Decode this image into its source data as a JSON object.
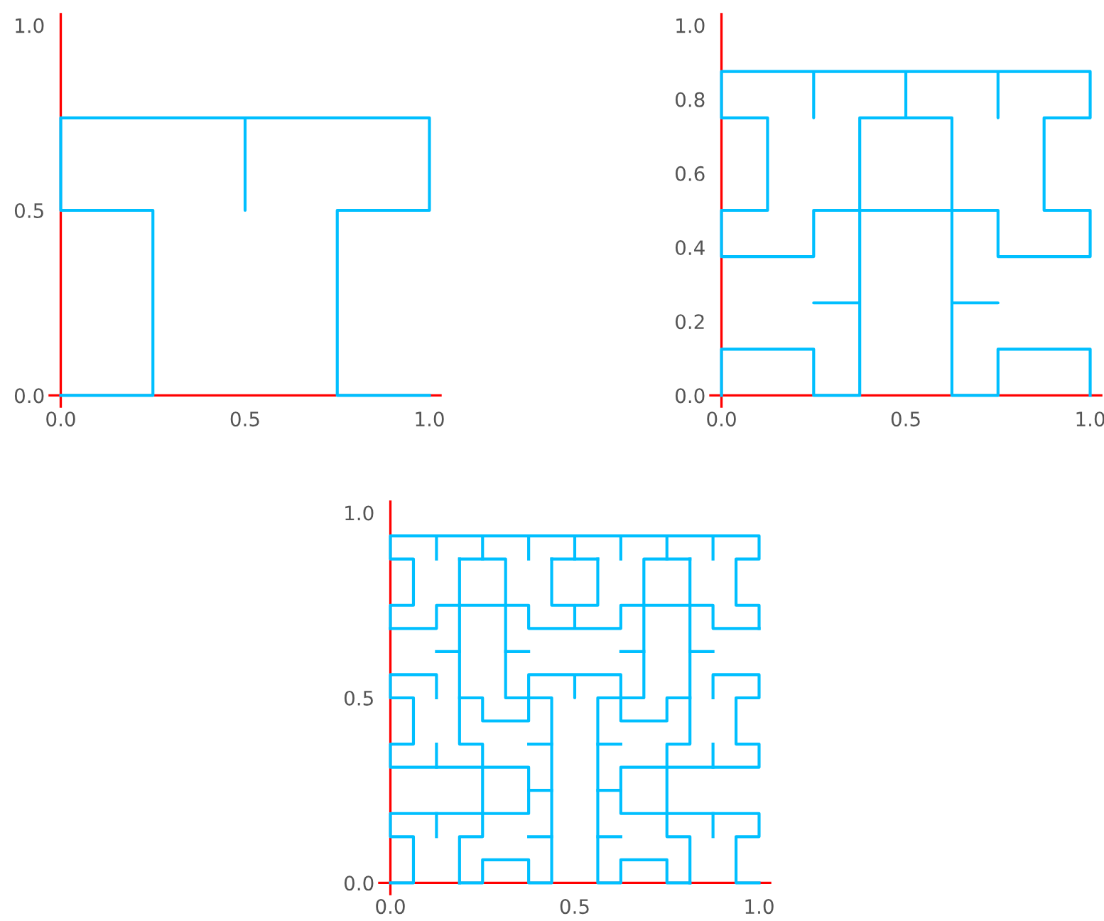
{
  "chart_data": [
    {
      "type": "line",
      "xlim": [
        -0.03,
        1.03
      ],
      "ylim": [
        -0.03,
        1.03
      ],
      "xticks": [
        {
          "value": 0,
          "label": "0.0"
        },
        {
          "value": 0.5,
          "label": "0.5"
        },
        {
          "value": 1,
          "label": "1.0"
        }
      ],
      "yticks": [
        {
          "value": 0,
          "label": "0.0"
        },
        {
          "value": 0.5,
          "label": "0.5"
        },
        {
          "value": 1,
          "label": "1.0"
        }
      ],
      "series": [
        {
          "color": "#00bfff",
          "x": [
            0,
            0.25,
            0.25,
            0,
            0,
            0.5,
            0.5,
            0.5,
            1,
            1,
            0.75,
            0.75,
            1
          ],
          "values": [
            0,
            0,
            0.5,
            0.5,
            0.75,
            0.75,
            0.5,
            0.75,
            0.75,
            0.5,
            0.5,
            0,
            0
          ]
        }
      ]
    },
    {
      "type": "line",
      "xlim": [
        -0.03,
        1.03
      ],
      "ylim": [
        -0.03,
        1.03
      ],
      "xticks": [
        {
          "value": 0,
          "label": "0.0"
        },
        {
          "value": 0.5,
          "label": "0.5"
        },
        {
          "value": 1,
          "label": "1.0"
        }
      ],
      "yticks": [
        {
          "value": 0,
          "label": "0.0"
        },
        {
          "value": 0.2,
          "label": "0.2"
        },
        {
          "value": 0.4,
          "label": "0.4"
        },
        {
          "value": 0.6,
          "label": "0.6"
        },
        {
          "value": 0.8,
          "label": "0.8"
        },
        {
          "value": 1,
          "label": "1.0"
        }
      ],
      "series": [
        {
          "color": "#00bfff",
          "x": [
            0,
            0,
            0.25,
            0.25,
            0.375,
            0.375,
            0.25,
            0.375,
            0.375,
            0.25,
            0.25,
            0,
            0,
            0.125,
            0.125,
            0,
            0,
            0.25,
            0.25,
            0.25,
            0.5,
            0.5,
            0.375,
            0.375,
            0.625,
            0.625,
            0.5,
            0.5,
            0.75,
            0.75,
            0.75,
            1,
            1,
            0.875,
            0.875,
            1,
            1,
            0.75,
            0.75,
            0.625,
            0.625,
            0.75,
            0.625,
            0.625,
            0.75,
            0.75,
            1,
            1
          ],
          "values": [
            0,
            0.125,
            0.125,
            0,
            0,
            0.25,
            0.25,
            0.25,
            0.5,
            0.5,
            0.375,
            0.375,
            0.5,
            0.5,
            0.75,
            0.75,
            0.875,
            0.875,
            0.75,
            0.875,
            0.875,
            0.75,
            0.75,
            0.5,
            0.5,
            0.75,
            0.75,
            0.875,
            0.875,
            0.75,
            0.875,
            0.875,
            0.75,
            0.75,
            0.5,
            0.5,
            0.375,
            0.375,
            0.5,
            0.5,
            0.25,
            0.25,
            0.25,
            0,
            0,
            0.125,
            0.125,
            0
          ]
        }
      ]
    },
    {
      "type": "line",
      "xlim": [
        -0.03,
        1.03
      ],
      "ylim": [
        -0.03,
        1.03
      ],
      "xticks": [
        {
          "value": 0,
          "label": "0.0"
        },
        {
          "value": 0.5,
          "label": "0.5"
        },
        {
          "value": 1,
          "label": "1.0"
        }
      ],
      "yticks": [
        {
          "value": 0,
          "label": "0.0"
        },
        {
          "value": 0.5,
          "label": "0.5"
        },
        {
          "value": 1,
          "label": "1.0"
        }
      ],
      "series": [
        {
          "color": "#00bfff",
          "x": [
            0,
            0.0625,
            0.0625,
            0,
            0,
            0.375,
            0.375,
            0,
            0,
            0.0625,
            0.0625,
            0,
            0,
            0.125,
            0.125
          ],
          "values": [
            0,
            0,
            0.125,
            0.125,
            0.1875,
            0.1875,
            0.3125,
            0.3125,
            0.375,
            0.375,
            0.5,
            0.5,
            0.5625,
            0.5625,
            0.5
          ]
        },
        {
          "color": "#00bfff",
          "x": [
            0.125,
            0.125
          ],
          "values": [
            0.1875,
            0.125
          ]
        },
        {
          "color": "#00bfff",
          "x": [
            0.125,
            0.125
          ],
          "values": [
            0.375,
            0.3125
          ]
        },
        {
          "color": "#00bfff",
          "x": [
            0.1875,
            0.25,
            0.25,
            0.375,
            0.375,
            0.4375,
            0.4375,
            0.3125,
            0.3125,
            0.1875
          ],
          "values": [
            0,
            0,
            0.0625,
            0.0625,
            0,
            0,
            0.5,
            0.5,
            0.875,
            0.875
          ]
        },
        {
          "color": "#00bfff",
          "x": [
            0.1875,
            0.1875,
            0.25,
            0.25,
            0.1875,
            0.1875
          ],
          "values": [
            0.875,
            0.375,
            0.375,
            0.125,
            0.125,
            0
          ]
        },
        {
          "color": "#00bfff",
          "x": [
            0.375,
            0.4375
          ],
          "values": [
            0.25,
            0.25
          ]
        },
        {
          "color": "#00bfff",
          "x": [
            0.375,
            0.4375
          ],
          "values": [
            0.375,
            0.375
          ]
        },
        {
          "color": "#00bfff",
          "x": [
            0.375,
            0.4375
          ],
          "values": [
            0.125,
            0.125
          ]
        },
        {
          "color": "#00bfff",
          "x": [
            0.1875,
            0.25,
            0.25,
            0.375,
            0.375,
            0.5,
            0.5,
            0.5,
            0.625,
            0.625,
            0.75,
            0.75,
            0.8125
          ],
          "values": [
            0.5,
            0.5,
            0.4375,
            0.4375,
            0.5625,
            0.5625,
            0.5,
            0.5625,
            0.5625,
            0.4375,
            0.4375,
            0.5,
            0.5
          ]
        },
        {
          "color": "#00bfff",
          "x": [
            0.125,
            0.1875
          ],
          "values": [
            0.625,
            0.625
          ]
        },
        {
          "color": "#00bfff",
          "x": [
            0.3125,
            0.375
          ],
          "values": [
            0.625,
            0.625
          ]
        },
        {
          "color": "#00bfff",
          "x": [
            0,
            0,
            0.0625,
            0.0625,
            0,
            0,
            1,
            1,
            0.9375,
            0.9375,
            1,
            1
          ],
          "values": [
            0.6875,
            0.75,
            0.75,
            0.875,
            0.875,
            0.9375,
            0.9375,
            0.875,
            0.875,
            0.75,
            0.75,
            0.6875
          ]
        },
        {
          "color": "#00bfff",
          "x": [
            0,
            0.125,
            0.125,
            0.375,
            0.375,
            0.5,
            0.5,
            0.5,
            0.625,
            0.625,
            0.875,
            0.875,
            1
          ],
          "values": [
            0.6875,
            0.6875,
            0.75,
            0.75,
            0.6875,
            0.6875,
            0.75,
            0.6875,
            0.6875,
            0.75,
            0.75,
            0.6875,
            0.6875
          ]
        },
        {
          "color": "#00bfff",
          "x": [
            0.125,
            0.125
          ],
          "values": [
            0.9375,
            0.875
          ]
        },
        {
          "color": "#00bfff",
          "x": [
            0.25,
            0.25
          ],
          "values": [
            0.9375,
            0.875
          ]
        },
        {
          "color": "#00bfff",
          "x": [
            0.375,
            0.375
          ],
          "values": [
            0.9375,
            0.875
          ]
        },
        {
          "color": "#00bfff",
          "x": [
            0.5,
            0.5
          ],
          "values": [
            0.9375,
            0.875
          ]
        },
        {
          "color": "#00bfff",
          "x": [
            0.5625,
            0.5625,
            0.4375,
            0.4375
          ],
          "values": [
            0.875,
            0.75,
            0.75,
            0.875
          ]
        },
        {
          "color": "#00bfff",
          "x": [
            0.4375,
            0.5625
          ],
          "values": [
            0.875,
            0.875
          ]
        },
        {
          "color": "#00bfff",
          "x": [
            1,
            0.9375,
            0.9375,
            1,
            1,
            0.625,
            0.625,
            1,
            1,
            0.9375,
            0.9375,
            1,
            1,
            0.875,
            0.875
          ],
          "values": [
            0,
            0,
            0.125,
            0.125,
            0.1875,
            0.1875,
            0.3125,
            0.3125,
            0.375,
            0.375,
            0.5,
            0.5,
            0.5625,
            0.5625,
            0.5
          ]
        },
        {
          "color": "#00bfff",
          "x": [
            0.875,
            0.875
          ],
          "values": [
            0.1875,
            0.125
          ]
        },
        {
          "color": "#00bfff",
          "x": [
            0.875,
            0.875
          ],
          "values": [
            0.375,
            0.3125
          ]
        },
        {
          "color": "#00bfff",
          "x": [
            0.8125,
            0.75,
            0.75,
            0.625,
            0.625,
            0.5625,
            0.5625,
            0.6875,
            0.6875,
            0.8125
          ],
          "values": [
            0,
            0,
            0.0625,
            0.0625,
            0,
            0,
            0.5,
            0.5,
            0.875,
            0.875
          ]
        },
        {
          "color": "#00bfff",
          "x": [
            0.8125,
            0.8125,
            0.75,
            0.75,
            0.8125,
            0.8125
          ],
          "values": [
            0.875,
            0.375,
            0.375,
            0.125,
            0.125,
            0
          ]
        },
        {
          "color": "#00bfff",
          "x": [
            0.625,
            0.5625
          ],
          "values": [
            0.25,
            0.25
          ]
        },
        {
          "color": "#00bfff",
          "x": [
            0.625,
            0.5625
          ],
          "values": [
            0.375,
            0.375
          ]
        },
        {
          "color": "#00bfff",
          "x": [
            0.625,
            0.5625
          ],
          "values": [
            0.125,
            0.125
          ]
        },
        {
          "color": "#00bfff",
          "x": [
            0.875,
            0.8125
          ],
          "values": [
            0.625,
            0.625
          ]
        },
        {
          "color": "#00bfff",
          "x": [
            0.6875,
            0.625
          ],
          "values": [
            0.625,
            0.625
          ]
        },
        {
          "color": "#00bfff",
          "x": [
            0.875,
            0.875
          ],
          "values": [
            0.9375,
            0.875
          ]
        },
        {
          "color": "#00bfff",
          "x": [
            0.75,
            0.75
          ],
          "values": [
            0.9375,
            0.875
          ]
        },
        {
          "color": "#00bfff",
          "x": [
            0.625,
            0.625
          ],
          "values": [
            0.9375,
            0.875
          ]
        }
      ]
    }
  ]
}
